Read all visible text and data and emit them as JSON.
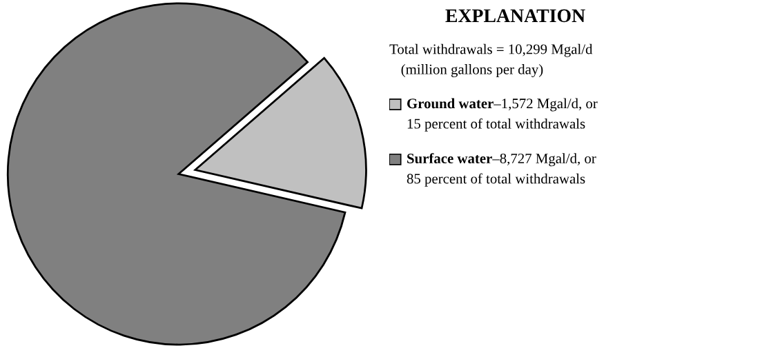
{
  "chart_data": {
    "type": "pie",
    "legend_title": "EXPLANATION",
    "annotations": [
      "Total withdrawals = 10,299 Mgal/d",
      "(million gallons per day)"
    ],
    "categories": [
      "Ground water",
      "Surface water"
    ],
    "values": [
      15,
      85
    ],
    "value_labels": [
      "–1,572 Mgal/d, or\n15 percent of total withdrawals",
      "–8,727 Mgal/d, or\n85 percent of total withdrawals"
    ],
    "colors": [
      "#c0c0c0",
      "#808080"
    ],
    "legend": "right"
  }
}
